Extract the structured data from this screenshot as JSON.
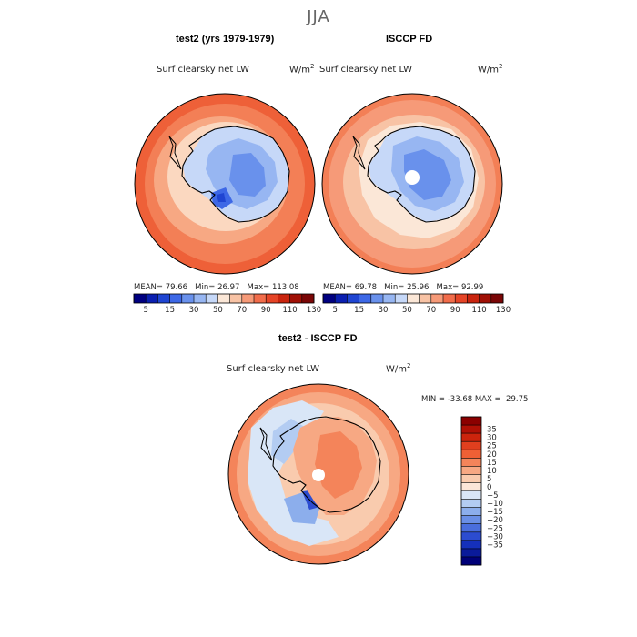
{
  "figure": {
    "title": "JJA"
  },
  "chart_data": [
    {
      "type": "heatmap",
      "projection": "south-polar-stereographic",
      "title": "test2 (yrs 1979-1979)",
      "variable": "Surf clearsky net LW",
      "units": "W/m",
      "units_exp": "2",
      "stats": {
        "mean_label": "MEAN=",
        "mean": "79.66",
        "min_label": "Min=",
        "min": "26.97",
        "max_label": "Max=",
        "max": "113.08"
      },
      "colorbar": {
        "ticks": [
          "5",
          "15",
          "30",
          "50",
          "70",
          "90",
          "110",
          "130"
        ],
        "colors": [
          "#000080",
          "#0a1fb0",
          "#1f45d2",
          "#3d68e6",
          "#6991ec",
          "#97b6f2",
          "#c6d8f8",
          "#fbe7d7",
          "#f8c3a5",
          "#f69a78",
          "#f16c4a",
          "#e54426",
          "#c9240e",
          "#a01005",
          "#7a0606"
        ]
      }
    },
    {
      "type": "heatmap",
      "projection": "south-polar-stereographic",
      "title": "ISCCP FD",
      "variable": "Surf clearsky net LW",
      "units": "W/m",
      "units_exp": "2",
      "stats": {
        "mean_label": "MEAN=",
        "mean": "69.78",
        "min_label": "Min=",
        "min": "25.96",
        "max_label": "Max=",
        "max": "92.99"
      },
      "colorbar": {
        "ticks": [
          "5",
          "15",
          "30",
          "50",
          "70",
          "90",
          "110",
          "130"
        ],
        "colors": [
          "#000080",
          "#0a1fb0",
          "#1f45d2",
          "#3d68e6",
          "#6991ec",
          "#97b6f2",
          "#c6d8f8",
          "#fbe7d7",
          "#f8c3a5",
          "#f69a78",
          "#f16c4a",
          "#e54426",
          "#c9240e",
          "#a01005",
          "#7a0606"
        ]
      }
    },
    {
      "type": "heatmap",
      "projection": "south-polar-stereographic",
      "title": "test2 - ISCCP FD",
      "variable": "Surf clearsky net LW",
      "units": "W/m",
      "units_exp": "2",
      "stats": {
        "min_label": "MIN =",
        "min": "-33.68",
        "max_label": "MAX =",
        "max": "29.75"
      },
      "colorbar": {
        "ticks": [
          "35",
          "30",
          "25",
          "20",
          "15",
          "10",
          "5",
          "0",
          "−5",
          "−10",
          "−15",
          "−20",
          "−25",
          "−30",
          "−35"
        ],
        "colors": [
          "#8b0000",
          "#b01005",
          "#cc240c",
          "#e03f1e",
          "#ef6035",
          "#f4845a",
          "#f7a883",
          "#f9cbae",
          "#fbe6d8",
          "#d9e6f7",
          "#b3ccf2",
          "#8caeec",
          "#6a8fe6",
          "#4a6edd",
          "#2c4cd0",
          "#1530bb",
          "#0a1a9a",
          "#000078"
        ]
      }
    }
  ]
}
